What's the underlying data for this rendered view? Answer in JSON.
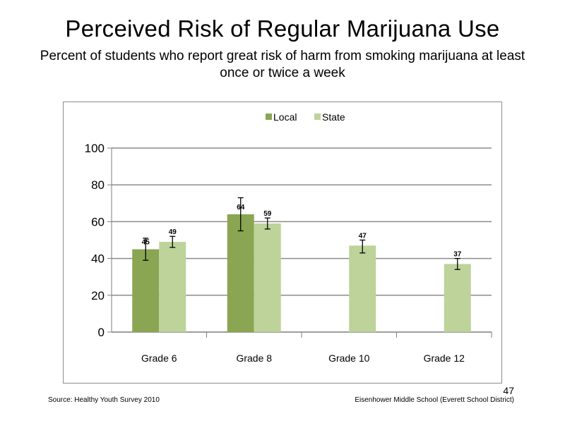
{
  "slide": {
    "title": "Perceived  Risk of Regular  Marijuana  Use",
    "subtitle": "Percent of students who report great risk of harm  from smoking marijuana  at least once or twice a week",
    "source": "Source: Healthy  Youth Survey 2010",
    "school": "Eisenhower Middle  School (Everett School District)",
    "page_number": "47"
  },
  "chart_data": {
    "type": "bar",
    "categories": [
      "Grade 6",
      "Grade 8",
      "Grade 10",
      "Grade 12"
    ],
    "series": [
      {
        "name": "Local",
        "color": "#8aa652",
        "values": [
          45,
          64,
          null,
          null
        ],
        "error_low": [
          39,
          55,
          null,
          null
        ],
        "error_high": [
          51,
          73,
          null,
          null
        ],
        "labels": [
          "45",
          "64",
          "",
          ""
        ]
      },
      {
        "name": "State",
        "color": "#bdd39a",
        "values": [
          49,
          59,
          47,
          37
        ],
        "error_low": [
          46,
          56,
          43,
          34
        ],
        "error_high": [
          52,
          62,
          50,
          40
        ],
        "labels": [
          "49",
          "59",
          "47",
          "37"
        ]
      }
    ],
    "ylim": [
      0,
      100
    ],
    "yticks": [
      "0",
      "20",
      "40",
      "60",
      "80",
      "100"
    ],
    "grid": true,
    "legend": "top-center"
  }
}
